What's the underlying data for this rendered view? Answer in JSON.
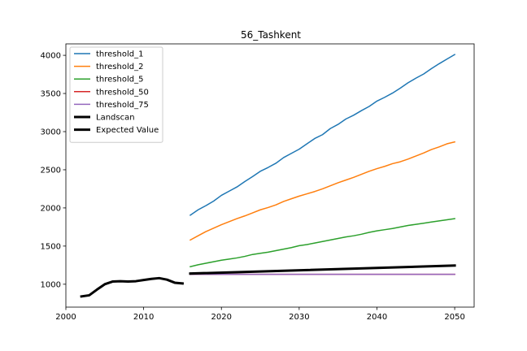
{
  "chart_data": {
    "type": "line",
    "title": "56_Tashkent",
    "xlabel": "",
    "ylabel": "",
    "xlim": [
      2000,
      2052.5
    ],
    "ylim": [
      700,
      4150
    ],
    "xticks": [
      2000,
      2010,
      2020,
      2030,
      2040,
      2050
    ],
    "yticks": [
      1000,
      1500,
      2000,
      2500,
      3000,
      3500,
      4000
    ],
    "grid": false,
    "legend_position": "top-left",
    "series": [
      {
        "name": "threshold_1",
        "color": "#1f77b4",
        "points": [
          [
            2016,
            1905
          ],
          [
            2017,
            1975
          ],
          [
            2018,
            2030
          ],
          [
            2019,
            2090
          ],
          [
            2020,
            2165
          ],
          [
            2021,
            2220
          ],
          [
            2022,
            2275
          ],
          [
            2023,
            2345
          ],
          [
            2024,
            2410
          ],
          [
            2025,
            2480
          ],
          [
            2026,
            2530
          ],
          [
            2027,
            2585
          ],
          [
            2028,
            2660
          ],
          [
            2029,
            2715
          ],
          [
            2030,
            2770
          ],
          [
            2031,
            2840
          ],
          [
            2032,
            2910
          ],
          [
            2033,
            2960
          ],
          [
            2034,
            3040
          ],
          [
            2035,
            3095
          ],
          [
            2036,
            3165
          ],
          [
            2037,
            3215
          ],
          [
            2038,
            3275
          ],
          [
            2039,
            3330
          ],
          [
            2040,
            3400
          ],
          [
            2041,
            3450
          ],
          [
            2042,
            3505
          ],
          [
            2043,
            3570
          ],
          [
            2044,
            3640
          ],
          [
            2045,
            3700
          ],
          [
            2046,
            3755
          ],
          [
            2047,
            3825
          ],
          [
            2048,
            3890
          ],
          [
            2049,
            3950
          ],
          [
            2050,
            4010
          ]
        ]
      },
      {
        "name": "threshold_2",
        "color": "#ff7f0e",
        "points": [
          [
            2016,
            1580
          ],
          [
            2017,
            1635
          ],
          [
            2018,
            1690
          ],
          [
            2019,
            1735
          ],
          [
            2020,
            1780
          ],
          [
            2021,
            1820
          ],
          [
            2022,
            1860
          ],
          [
            2023,
            1895
          ],
          [
            2024,
            1935
          ],
          [
            2025,
            1975
          ],
          [
            2026,
            2005
          ],
          [
            2027,
            2040
          ],
          [
            2028,
            2085
          ],
          [
            2029,
            2120
          ],
          [
            2030,
            2155
          ],
          [
            2031,
            2185
          ],
          [
            2032,
            2215
          ],
          [
            2033,
            2250
          ],
          [
            2034,
            2290
          ],
          [
            2035,
            2330
          ],
          [
            2036,
            2365
          ],
          [
            2037,
            2400
          ],
          [
            2038,
            2440
          ],
          [
            2039,
            2480
          ],
          [
            2040,
            2515
          ],
          [
            2041,
            2545
          ],
          [
            2042,
            2580
          ],
          [
            2043,
            2605
          ],
          [
            2044,
            2640
          ],
          [
            2045,
            2680
          ],
          [
            2046,
            2720
          ],
          [
            2047,
            2765
          ],
          [
            2048,
            2800
          ],
          [
            2049,
            2840
          ],
          [
            2050,
            2865
          ]
        ]
      },
      {
        "name": "threshold_5",
        "color": "#2ca02c",
        "points": [
          [
            2016,
            1230
          ],
          [
            2017,
            1255
          ],
          [
            2018,
            1275
          ],
          [
            2019,
            1295
          ],
          [
            2020,
            1315
          ],
          [
            2021,
            1330
          ],
          [
            2022,
            1345
          ],
          [
            2023,
            1365
          ],
          [
            2024,
            1390
          ],
          [
            2025,
            1405
          ],
          [
            2026,
            1420
          ],
          [
            2027,
            1440
          ],
          [
            2028,
            1460
          ],
          [
            2029,
            1480
          ],
          [
            2030,
            1505
          ],
          [
            2031,
            1520
          ],
          [
            2032,
            1540
          ],
          [
            2033,
            1560
          ],
          [
            2034,
            1580
          ],
          [
            2035,
            1600
          ],
          [
            2036,
            1620
          ],
          [
            2037,
            1635
          ],
          [
            2038,
            1655
          ],
          [
            2039,
            1680
          ],
          [
            2040,
            1700
          ],
          [
            2041,
            1715
          ],
          [
            2042,
            1730
          ],
          [
            2043,
            1750
          ],
          [
            2044,
            1770
          ],
          [
            2045,
            1785
          ],
          [
            2046,
            1800
          ],
          [
            2047,
            1815
          ],
          [
            2048,
            1830
          ],
          [
            2049,
            1845
          ],
          [
            2050,
            1860
          ]
        ]
      },
      {
        "name": "threshold_50",
        "color": "#d62728",
        "points": [
          [
            2016,
            1130
          ],
          [
            2050,
            1130
          ]
        ]
      },
      {
        "name": "threshold_75",
        "color": "#9467bd",
        "points": [
          [
            2016,
            1130
          ],
          [
            2050,
            1130
          ]
        ]
      },
      {
        "name": "Landscan",
        "color": "#000000",
        "points": [
          [
            2002,
            840
          ],
          [
            2003,
            855
          ],
          [
            2004,
            930
          ],
          [
            2005,
            1000
          ],
          [
            2006,
            1035
          ],
          [
            2007,
            1040
          ],
          [
            2008,
            1035
          ],
          [
            2009,
            1040
          ],
          [
            2010,
            1055
          ],
          [
            2011,
            1070
          ],
          [
            2012,
            1080
          ],
          [
            2013,
            1060
          ],
          [
            2014,
            1020
          ],
          [
            2015,
            1010
          ]
        ]
      },
      {
        "name": "Expected Value",
        "color": "#000000",
        "points": [
          [
            2016,
            1140
          ],
          [
            2050,
            1245
          ]
        ]
      }
    ]
  }
}
